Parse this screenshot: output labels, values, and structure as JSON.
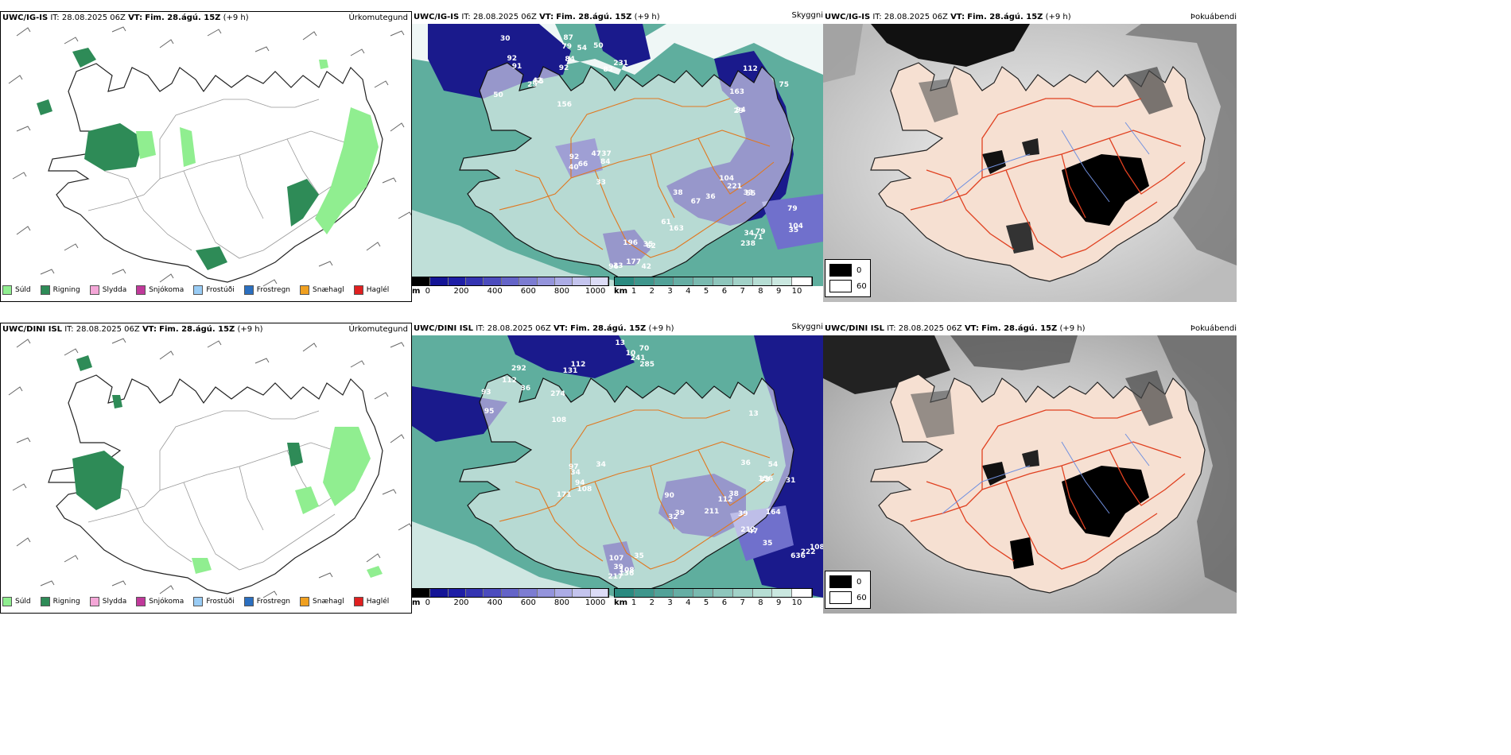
{
  "rows": [
    {
      "model": "UWC/IG-IS",
      "it_label": "IT:",
      "it_value": "28.08.2025 06Z",
      "vt_label": "VT:",
      "vt_value": "Fim. 28.ágú. 15Z",
      "offset": "(+9 h)",
      "cloud_numbers": [
        "156",
        "79",
        "75",
        "67",
        "79",
        "96",
        "92",
        "92",
        "84",
        "94",
        "61",
        "71",
        "196",
        "66",
        "65",
        "87",
        "112",
        "55",
        "104",
        "62",
        "40",
        "50",
        "50",
        "163",
        "104",
        "79",
        "42",
        "33",
        "42",
        "82",
        "29",
        "38",
        "35",
        "33",
        "84",
        "91",
        "92",
        "33",
        "36",
        "34",
        "35",
        "37",
        "29",
        "231",
        "221",
        "163",
        "238",
        "177",
        "47",
        "30",
        "54"
      ]
    },
    {
      "model": "UWC/DINI ISL",
      "it_label": "IT:",
      "it_value": "28.08.2025 06Z",
      "vt_label": "VT:",
      "vt_value": "Fim. 28.ágú. 15Z",
      "offset": "(+9 h)",
      "cloud_numbers": [
        "108",
        "112",
        "156",
        "90",
        "108",
        "107",
        "171",
        "93",
        "10",
        "13",
        "112",
        "222",
        "136",
        "97",
        "36",
        "131",
        "54",
        "211",
        "212",
        "217",
        "34",
        "292",
        "241",
        "31",
        "39",
        "47",
        "39",
        "94",
        "112",
        "70",
        "33",
        "32",
        "35",
        "35",
        "34",
        "274",
        "285",
        "164",
        "38",
        "636",
        "108",
        "108",
        "95",
        "13",
        "36",
        "39"
      ]
    }
  ],
  "panel_titles": {
    "precip_type": "Úrkomutegund",
    "visibility": "Skyggni",
    "cloud_cover": "Þokuábendi"
  },
  "precip_legend": [
    {
      "label": "Súld",
      "color": "#90ee90"
    },
    {
      "label": "Rigning",
      "color": "#2e8b57"
    },
    {
      "label": "Slydda",
      "color": "#f4a6d7"
    },
    {
      "label": "Snjókoma",
      "color": "#c0399a"
    },
    {
      "label": "Frostúði",
      "color": "#99ccf5"
    },
    {
      "label": "Frostregn",
      "color": "#2b6fc0"
    },
    {
      "label": "Snæhagl",
      "color": "#f0a020"
    },
    {
      "label": "Haglél",
      "color": "#e02020"
    }
  ],
  "cloudbase_bar": {
    "unit": "m",
    "ticks": [
      "0",
      "200",
      "400",
      "600",
      "800",
      "1000"
    ],
    "colors": [
      "#000000",
      "#141496",
      "#1e1ea6",
      "#3434b2",
      "#4c4cbe",
      "#6464c8",
      "#7c7cd2",
      "#9494dc",
      "#acace6",
      "#c4c4ee",
      "#dcdcf6"
    ]
  },
  "visibility_bar": {
    "unit": "km",
    "ticks": [
      "1",
      "2",
      "3",
      "4",
      "5",
      "6",
      "7",
      "8",
      "9",
      "10"
    ],
    "colors": [
      "#2a8a80",
      "#3e968c",
      "#52a298",
      "#66aea4",
      "#7abab0",
      "#8ec6bc",
      "#a2d2c8",
      "#b6ded4",
      "#cae8e0",
      "#ffffff"
    ]
  },
  "fog_legend": [
    {
      "label": "0",
      "color": "#000000"
    },
    {
      "label": "60",
      "color": "#ffffff"
    }
  ]
}
